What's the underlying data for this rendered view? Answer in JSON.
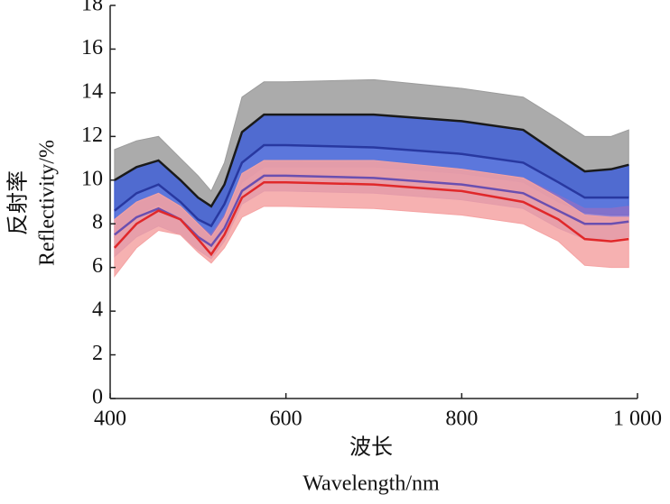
{
  "chart_data": {
    "type": "band-line",
    "xlabel": "波长",
    "xlabel_en": "Wavelength/nm",
    "ylabel": "反射率",
    "ylabel_en": "Reflectivity/%",
    "x": [
      405,
      430,
      455,
      480,
      500,
      515,
      530,
      550,
      575,
      600,
      700,
      800,
      870,
      910,
      940,
      970,
      990
    ],
    "xlim": [
      400,
      1000
    ],
    "xticks": [
      400,
      600,
      800,
      {
        "value": 1000,
        "label": "1 000"
      }
    ],
    "ylim": [
      0,
      18
    ],
    "yticks": [
      0,
      2,
      4,
      6,
      8,
      10,
      12,
      14,
      16,
      18
    ],
    "series": [
      {
        "color": "#1a1a1a",
        "band_color": "#9c9c9c",
        "values": [
          10.0,
          10.6,
          10.9,
          10.0,
          9.2,
          8.8,
          9.8,
          12.2,
          13.0,
          13.0,
          13.0,
          12.7,
          12.3,
          11.2,
          10.4,
          10.5,
          10.7
        ],
        "upper": [
          11.4,
          11.8,
          12.0,
          11.0,
          10.2,
          9.5,
          10.8,
          13.8,
          14.5,
          14.5,
          14.6,
          14.2,
          13.8,
          12.8,
          12.0,
          12.0,
          12.3
        ],
        "lower": [
          8.6,
          9.4,
          9.8,
          9.0,
          8.2,
          7.9,
          8.9,
          10.8,
          11.6,
          11.6,
          11.5,
          11.2,
          10.8,
          9.9,
          9.2,
          9.2,
          9.2
        ]
      },
      {
        "color": "#2838a0",
        "band_color": "#3f5fd6",
        "values": [
          8.6,
          9.4,
          9.8,
          9.0,
          8.2,
          7.9,
          8.9,
          10.8,
          11.6,
          11.6,
          11.5,
          11.2,
          10.8,
          9.9,
          9.2,
          9.2,
          9.2
        ],
        "upper": [
          10.0,
          10.6,
          10.9,
          10.0,
          9.2,
          8.8,
          9.8,
          12.2,
          13.0,
          13.0,
          13.0,
          12.7,
          12.3,
          11.2,
          10.4,
          10.5,
          10.7
        ],
        "lower": [
          7.4,
          8.4,
          8.9,
          8.2,
          7.4,
          7.0,
          8.0,
          9.9,
          10.6,
          10.6,
          10.6,
          10.3,
          9.9,
          9.0,
          8.5,
          8.4,
          8.4
        ]
      },
      {
        "color": "#6a4fb0",
        "band_color": "#8a70c8",
        "values": [
          7.5,
          8.3,
          8.7,
          8.2,
          7.4,
          7.0,
          7.8,
          9.5,
          10.2,
          10.2,
          10.1,
          9.8,
          9.4,
          8.6,
          8.0,
          8.0,
          8.1
        ],
        "upper": [
          8.2,
          9.0,
          9.4,
          8.8,
          8.0,
          7.5,
          8.4,
          10.2,
          10.9,
          10.9,
          10.8,
          10.5,
          10.1,
          9.3,
          8.7,
          8.7,
          8.8
        ],
        "lower": [
          6.5,
          7.4,
          7.9,
          7.5,
          6.8,
          6.4,
          7.2,
          8.9,
          9.5,
          9.5,
          9.4,
          9.1,
          8.7,
          7.8,
          7.3,
          7.3,
          7.4
        ]
      },
      {
        "color": "#e0282a",
        "band_color": "#f5a3a3",
        "values": [
          6.9,
          8.0,
          8.6,
          8.2,
          7.3,
          6.6,
          7.5,
          9.2,
          9.9,
          9.9,
          9.8,
          9.5,
          9.0,
          8.2,
          7.3,
          7.2,
          7.3
        ],
        "upper": [
          8.2,
          9.0,
          9.4,
          8.8,
          8.0,
          7.4,
          8.3,
          10.3,
          10.9,
          10.9,
          10.9,
          10.5,
          10.1,
          9.2,
          8.4,
          8.3,
          8.3
        ],
        "lower": [
          5.6,
          6.9,
          7.7,
          7.5,
          6.7,
          6.2,
          6.9,
          8.3,
          8.8,
          8.8,
          8.7,
          8.4,
          8.0,
          7.2,
          6.1,
          6.0,
          6.0
        ]
      }
    ]
  }
}
